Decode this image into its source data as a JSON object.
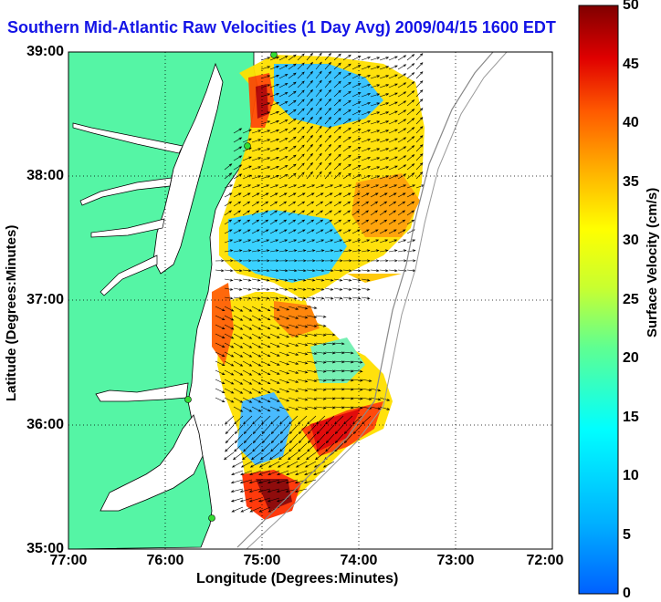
{
  "title": "Southern Mid-Atlantic Raw Velocities (1 Day Avg) 2009/04/15 1600 EDT",
  "xaxis": {
    "label": "Longitude (Degrees:Minutes)",
    "ticks": [
      "77:00",
      "76:00",
      "75:00",
      "74:00",
      "73:00",
      "72:00"
    ]
  },
  "yaxis": {
    "label": "Latitude (Degrees:Minutes)",
    "ticks": [
      "39:00",
      "38:00",
      "37:00",
      "36:00",
      "35:00"
    ]
  },
  "colorbar": {
    "label": "Surface Velocity (cm/s)",
    "ticks": [
      "50",
      "45",
      "40",
      "35",
      "30",
      "25",
      "20",
      "15",
      "10",
      "5",
      "0"
    ],
    "min": 0,
    "max": 50,
    "colormap": "jet"
  },
  "colors": {
    "land": "#55f5a5",
    "ocean": "#ffffff",
    "title": "#1414e6",
    "stations": "#33dd33"
  },
  "map_extent": {
    "lon": [
      -77,
      -72
    ],
    "lat": [
      35,
      39
    ]
  },
  "grid": "dotted"
}
